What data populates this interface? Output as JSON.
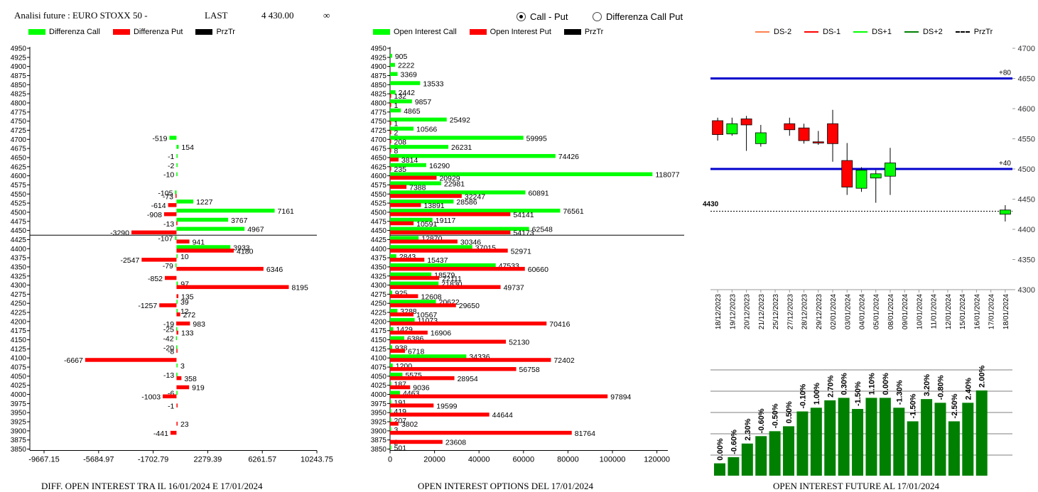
{
  "header": {
    "title": "Analisi future : EURO STOXX 50 -",
    "last_label": "LAST",
    "last_value": "4 430.00",
    "infinity": "∞",
    "radio_call_put": "Call - Put",
    "radio_diff": "Differenza Call Put",
    "radio_selected": "call_put"
  },
  "colors": {
    "green": "#00ff00",
    "red": "#ff0000",
    "black": "#000000",
    "blue": "#0000cc",
    "dark_green": "#008000",
    "orange": "#ff7f50"
  },
  "chart_data": [
    {
      "type": "bar",
      "orientation": "horizontal",
      "caption": "DIFF. OPEN INTEREST TRA IL 16/01/2024 E 17/01/2024",
      "legend": [
        "Differenza Call",
        "Differenza Put",
        "PrzTr"
      ],
      "strikes": [
        4950,
        4925,
        4900,
        4875,
        4850,
        4825,
        4800,
        4775,
        4750,
        4725,
        4700,
        4675,
        4650,
        4625,
        4600,
        4575,
        4550,
        4525,
        4500,
        4475,
        4450,
        4425,
        4400,
        4375,
        4350,
        4325,
        4300,
        4275,
        4250,
        4225,
        4200,
        4175,
        4150,
        4125,
        4100,
        4075,
        4050,
        4025,
        4000,
        3975,
        3950,
        3925,
        3900,
        3875,
        3850
      ],
      "xticks": [
        "-9667.15",
        "-5684.97",
        "-1702.79",
        "2279.39",
        "6261.57",
        "10243.75"
      ],
      "xlim": [
        -9667.15,
        10243.75
      ],
      "price_line": 4437,
      "call": [
        {
          "strike": 4700,
          "value": -519,
          "label": "-519"
        },
        {
          "strike": 4675,
          "value": 154,
          "label": "154"
        },
        {
          "strike": 4650,
          "value": -1,
          "label": "-1"
        },
        {
          "strike": 4625,
          "value": -2,
          "label": "-2"
        },
        {
          "strike": 4600,
          "value": -10,
          "label": "-10"
        },
        {
          "strike": 4550,
          "value": -105,
          "label": "-105"
        },
        {
          "strike": 4525,
          "value": 1227,
          "label": "1227"
        },
        {
          "strike": 4500,
          "value": 7161,
          "label": "7161"
        },
        {
          "strike": 4475,
          "value": 3767,
          "label": "3767"
        },
        {
          "strike": 4450,
          "value": 4967,
          "label": "4967"
        },
        {
          "strike": 4425,
          "value": -107,
          "label": "-107"
        },
        {
          "strike": 4400,
          "value": 3933,
          "label": "3933"
        },
        {
          "strike": 4375,
          "value": 10,
          "label": "10"
        },
        {
          "strike": 4350,
          "value": -79,
          "label": "-79"
        },
        {
          "strike": 4300,
          "value": 97,
          "label": "97"
        },
        {
          "strike": 4250,
          "value": 39,
          "label": "39"
        },
        {
          "strike": 4225,
          "value": 12,
          "label": "12"
        },
        {
          "strike": 4175,
          "value": -25,
          "label": "-25"
        },
        {
          "strike": 4150,
          "value": -42,
          "label": "-42"
        },
        {
          "strike": 4125,
          "value": -20,
          "label": "-20"
        },
        {
          "strike": 4075,
          "value": 3,
          "label": "3"
        },
        {
          "strike": 4050,
          "value": -13,
          "label": "-13"
        },
        {
          "strike": 4000,
          "value": -6,
          "label": "-6"
        }
      ],
      "put": [
        {
          "strike": 4550,
          "value": -73,
          "label": "-73"
        },
        {
          "strike": 4525,
          "value": -614,
          "label": "-614"
        },
        {
          "strike": 4500,
          "value": -908,
          "label": "-908"
        },
        {
          "strike": 4475,
          "value": -13,
          "label": "-13"
        },
        {
          "strike": 4450,
          "value": -3290,
          "label": "-3290"
        },
        {
          "strike": 4425,
          "value": 941,
          "label": "941"
        },
        {
          "strike": 4400,
          "value": 4180,
          "label": "4180"
        },
        {
          "strike": 4375,
          "value": -2547,
          "label": "-2547"
        },
        {
          "strike": 4350,
          "value": 6346,
          "label": "6346"
        },
        {
          "strike": 4325,
          "value": -852,
          "label": "-852"
        },
        {
          "strike": 4300,
          "value": 8195,
          "label": "8195"
        },
        {
          "strike": 4275,
          "value": 135,
          "label": "135"
        },
        {
          "strike": 4250,
          "value": -1257,
          "label": "-1257"
        },
        {
          "strike": 4225,
          "value": 272,
          "label": "272"
        },
        {
          "strike": 4200,
          "value": 983,
          "label": "983"
        },
        {
          "strike": 4200,
          "value": -19,
          "label": "-19"
        },
        {
          "strike": 4175,
          "value": 133,
          "label": "133"
        },
        {
          "strike": 4125,
          "value": -8,
          "label": "-8"
        },
        {
          "strike": 4100,
          "value": -6667,
          "label": "-6667"
        },
        {
          "strike": 4050,
          "value": 358,
          "label": "358"
        },
        {
          "strike": 4025,
          "value": 919,
          "label": "919"
        },
        {
          "strike": 4000,
          "value": -1003,
          "label": "-1003"
        },
        {
          "strike": 3975,
          "value": -1,
          "label": "-1"
        },
        {
          "strike": 3925,
          "value": 23,
          "label": "23"
        },
        {
          "strike": 3900,
          "value": -441,
          "label": "-441"
        }
      ]
    },
    {
      "type": "bar",
      "orientation": "horizontal",
      "caption": "OPEN INTEREST OPTIONS DEL 17/01/2024",
      "legend": [
        "Open Interest Call",
        "Open Interest Put",
        "PrzTr"
      ],
      "strikes": [
        4950,
        4925,
        4900,
        4875,
        4850,
        4825,
        4800,
        4775,
        4750,
        4725,
        4700,
        4675,
        4650,
        4625,
        4600,
        4575,
        4550,
        4525,
        4500,
        4475,
        4450,
        4425,
        4400,
        4375,
        4350,
        4325,
        4300,
        4275,
        4250,
        4225,
        4200,
        4175,
        4150,
        4125,
        4100,
        4075,
        4050,
        4025,
        4000,
        3975,
        3950,
        3925,
        3900,
        3875,
        3850
      ],
      "xticks": [
        "0",
        "20000",
        "40000",
        "60000",
        "80000",
        "100000",
        "120000"
      ],
      "xlim": [
        0,
        125000
      ],
      "price_line": 4437,
      "call": [
        {
          "strike": 4925,
          "value": 905
        },
        {
          "strike": 4900,
          "value": 2222
        },
        {
          "strike": 4875,
          "value": 3369
        },
        {
          "strike": 4850,
          "value": 13533
        },
        {
          "strike": 4825,
          "value": 2442
        },
        {
          "strike": 4800,
          "value": 9857
        },
        {
          "strike": 4775,
          "value": 4865
        },
        {
          "strike": 4750,
          "value": 25492
        },
        {
          "strike": 4725,
          "value": 10566
        },
        {
          "strike": 4700,
          "value": 59995
        },
        {
          "strike": 4675,
          "value": 26231
        },
        {
          "strike": 4650,
          "value": 74426
        },
        {
          "strike": 4625,
          "value": 16290
        },
        {
          "strike": 4600,
          "value": 118077
        },
        {
          "strike": 4575,
          "value": 22981
        },
        {
          "strike": 4550,
          "value": 60891
        },
        {
          "strike": 4525,
          "value": 28586
        },
        {
          "strike": 4500,
          "value": 76561
        },
        {
          "strike": 4475,
          "value": 19117
        },
        {
          "strike": 4450,
          "value": 62548
        },
        {
          "strike": 4425,
          "value": 12870
        },
        {
          "strike": 4400,
          "value": 37015
        },
        {
          "strike": 4375,
          "value": 2843
        },
        {
          "strike": 4350,
          "value": 47533
        },
        {
          "strike": 4325,
          "value": 18579
        },
        {
          "strike": 4300,
          "value": 21830
        },
        {
          "strike": 4275,
          "value": 925
        },
        {
          "strike": 4250,
          "value": 20622
        },
        {
          "strike": 4225,
          "value": 3288
        },
        {
          "strike": 4200,
          "value": 11073
        },
        {
          "strike": 4175,
          "value": 1429
        },
        {
          "strike": 4150,
          "value": 6386
        },
        {
          "strike": 4125,
          "value": 938
        },
        {
          "strike": 4100,
          "value": 34336
        },
        {
          "strike": 4075,
          "value": 1200
        },
        {
          "strike": 4050,
          "value": 5575
        },
        {
          "strike": 4025,
          "value": 187
        },
        {
          "strike": 4000,
          "value": 4463
        },
        {
          "strike": 3975,
          "value": 191
        },
        {
          "strike": 3950,
          "value": 419
        },
        {
          "strike": 3925,
          "value": 207
        },
        {
          "strike": 3900,
          "value": 3
        },
        {
          "strike": 3850,
          "value": 501
        }
      ],
      "put": [
        {
          "strike": 4825,
          "value": 132
        },
        {
          "strike": 4800,
          "value": 1
        },
        {
          "strike": 4750,
          "value": 1
        },
        {
          "strike": 4725,
          "value": 2
        },
        {
          "strike": 4700,
          "value": 208
        },
        {
          "strike": 4675,
          "value": 8
        },
        {
          "strike": 4650,
          "value": 3814
        },
        {
          "strike": 4625,
          "value": 235
        },
        {
          "strike": 4600,
          "value": 20929
        },
        {
          "strike": 4575,
          "value": 7388
        },
        {
          "strike": 4550,
          "value": 32247
        },
        {
          "strike": 4525,
          "value": 13891
        },
        {
          "strike": 4500,
          "value": 54141
        },
        {
          "strike": 4475,
          "value": 10591
        },
        {
          "strike": 4450,
          "value": 54173
        },
        {
          "strike": 4425,
          "value": 30346
        },
        {
          "strike": 4400,
          "value": 52971
        },
        {
          "strike": 4375,
          "value": 15437
        },
        {
          "strike": 4350,
          "value": 60660
        },
        {
          "strike": 4325,
          "value": 22111
        },
        {
          "strike": 4300,
          "value": 49737
        },
        {
          "strike": 4275,
          "value": 12608
        },
        {
          "strike": 4250,
          "value": 29650
        },
        {
          "strike": 4225,
          "value": 10567
        },
        {
          "strike": 4200,
          "value": 70416
        },
        {
          "strike": 4175,
          "value": 16906
        },
        {
          "strike": 4150,
          "value": 52130
        },
        {
          "strike": 4125,
          "value": 6718
        },
        {
          "strike": 4100,
          "value": 72402
        },
        {
          "strike": 4075,
          "value": 56758
        },
        {
          "strike": 4050,
          "value": 28954
        },
        {
          "strike": 4025,
          "value": 9036
        },
        {
          "strike": 4000,
          "value": 97894
        },
        {
          "strike": 3975,
          "value": 19599
        },
        {
          "strike": 3950,
          "value": 44644
        },
        {
          "strike": 3925,
          "value": 3802
        },
        {
          "strike": 3900,
          "value": 81764
        },
        {
          "strike": 3875,
          "value": 2
        },
        {
          "strike": 3875,
          "value": 23608
        }
      ]
    },
    {
      "type": "candlestick",
      "legend": [
        "DS-2",
        "DS-1",
        "DS+1",
        "DS+2",
        "PrzTr"
      ],
      "ylim": [
        4300,
        4700
      ],
      "yticks": [
        "4700",
        "4650",
        "4600",
        "4550",
        "4500",
        "4450",
        "4400",
        "4350",
        "4300"
      ],
      "dates": [
        "18/12/2023",
        "19/12/2023",
        "20/12/2023",
        "21/12/2023",
        "25/12/2023",
        "27/12/2023",
        "28/12/2023",
        "29/12/2023",
        "02/01/2024",
        "03/01/2024",
        "04/01/2024",
        "05/01/2024",
        "08/01/2024",
        "09/01/2024",
        "10/01/2024",
        "11/01/2024",
        "12/01/2024",
        "15/01/2024",
        "16/01/2024",
        "17/01/2024",
        "18/01/2024"
      ],
      "candles": [
        {
          "date": "18/12/2023",
          "open": 4580,
          "close": 4557,
          "high": 4585,
          "low": 4547
        },
        {
          "date": "19/12/2023",
          "open": 4558,
          "close": 4575,
          "high": 4585,
          "low": 4555
        },
        {
          "date": "20/12/2023",
          "open": 4583,
          "close": 4573,
          "high": 4588,
          "low": 4530
        },
        {
          "date": "21/12/2023",
          "open": 4542,
          "close": 4560,
          "high": 4573,
          "low": 4537
        },
        {
          "date": "27/12/2023",
          "open": 4575,
          "close": 4565,
          "high": 4585,
          "low": 4555
        },
        {
          "date": "28/12/2023",
          "open": 4568,
          "close": 4547,
          "high": 4575,
          "low": 4542
        },
        {
          "date": "29/12/2023",
          "open": 4545,
          "close": 4543,
          "high": 4563,
          "low": 4540
        },
        {
          "date": "02/01/2024",
          "open": 4575,
          "close": 4542,
          "high": 4598,
          "low": 4512
        },
        {
          "date": "03/01/2024",
          "open": 4514,
          "close": 4470,
          "high": 4543,
          "low": 4457
        },
        {
          "date": "04/01/2024",
          "open": 4468,
          "close": 4498,
          "high": 4503,
          "low": 4462
        },
        {
          "date": "05/01/2024",
          "open": 4485,
          "close": 4492,
          "high": 4498,
          "low": 4444
        },
        {
          "date": "08/01/2024",
          "open": 4488,
          "close": 4510,
          "high": 4535,
          "low": 4457
        },
        {
          "date": "18/01/2024",
          "open": 4425,
          "close": 4432,
          "high": 4440,
          "low": 4413
        }
      ],
      "levels": [
        {
          "value": 4650,
          "label": "+80"
        },
        {
          "value": 4500,
          "label": "+40"
        }
      ],
      "price_line": 4430,
      "price_label": "4430"
    },
    {
      "type": "bar",
      "caption": "OPEN INTEREST FUTURE AL 17/01/2024",
      "bars": [
        {
          "label": "0.00%",
          "value": 0.0
        },
        {
          "label": "-0.60%",
          "value": -0.6
        },
        {
          "label": "2.30%",
          "value": 2.3
        },
        {
          "label": "-0.60%",
          "value": -0.6
        },
        {
          "label": "-0.50%",
          "value": -0.5
        },
        {
          "label": "0.50%",
          "value": 0.5
        },
        {
          "label": "-0.10%",
          "value": -0.1
        },
        {
          "label": "1.00%",
          "value": 1.0
        },
        {
          "label": "2.70%",
          "value": 2.7
        },
        {
          "label": "0.30%",
          "value": 0.3
        },
        {
          "label": "-1.50%",
          "value": -1.5
        },
        {
          "label": "1.10%",
          "value": 1.1
        },
        {
          "label": "0.00%",
          "value": 0.0
        },
        {
          "label": "-1.30%",
          "value": -1.3
        },
        {
          "label": "-1.50%",
          "value": -1.5
        },
        {
          "label": "3.20%",
          "value": 3.2
        },
        {
          "label": "-0.80%",
          "value": -0.8
        },
        {
          "label": "-2.50%",
          "value": -2.5
        },
        {
          "label": "2.40%",
          "value": 2.4
        },
        {
          "label": "2.00%",
          "value": 2.0
        }
      ],
      "levels": [
        1.0,
        1.5,
        2.6,
        3.2,
        3.6,
        4.0,
        5.2,
        5.5,
        6.1,
        6.3,
        5.4,
        6.3,
        6.3,
        5.5,
        4.4,
        6.2,
        5.9,
        4.4,
        5.9,
        6.9
      ]
    }
  ]
}
